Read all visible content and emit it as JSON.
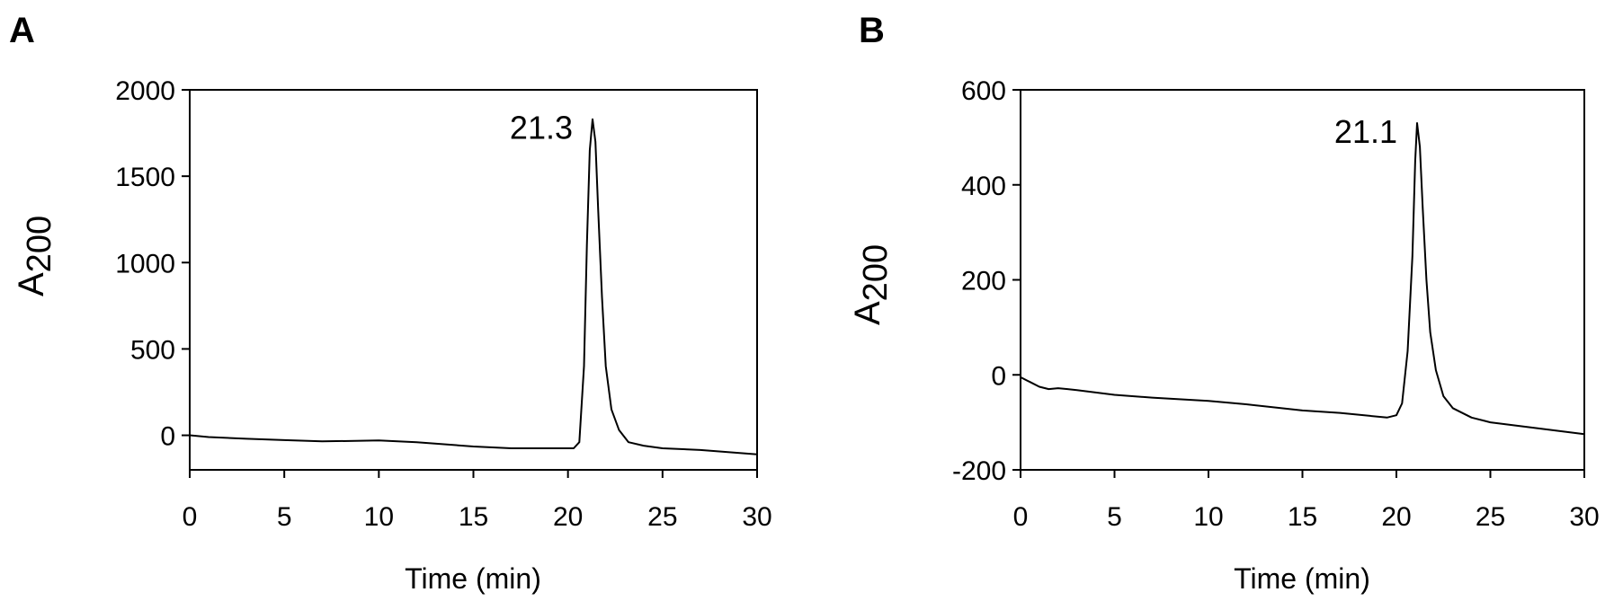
{
  "chart_data": [
    {
      "panel": "A",
      "type": "line",
      "xlabel": "Time (min)",
      "ylabel_main": "A",
      "ylabel_sub": "200",
      "xlim": [
        0,
        30
      ],
      "ylim": [
        -200,
        2000
      ],
      "xticks": [
        "0",
        "5",
        "10",
        "15",
        "20",
        "25",
        "30"
      ],
      "yticks": [
        "0",
        "500",
        "1000",
        "1500",
        "2000"
      ],
      "annotation": {
        "text": "21.3",
        "x": 21.3,
        "y": 1830
      },
      "series": [
        {
          "x": [
            0,
            1,
            3,
            5,
            7,
            10,
            12,
            15,
            17,
            19,
            20.3,
            20.6,
            20.85,
            21.0,
            21.15,
            21.3,
            21.45,
            21.6,
            21.8,
            22.0,
            22.3,
            22.7,
            23.2,
            24,
            25,
            27,
            30
          ],
          "y": [
            0,
            -10,
            -20,
            -28,
            -35,
            -30,
            -40,
            -65,
            -75,
            -75,
            -75,
            -40,
            400,
            1100,
            1650,
            1830,
            1700,
            1300,
            800,
            400,
            150,
            30,
            -40,
            -60,
            -75,
            -85,
            -110
          ]
        }
      ]
    },
    {
      "panel": "B",
      "type": "line",
      "xlabel": "Time (min)",
      "ylabel_main": "A",
      "ylabel_sub": "200",
      "xlim": [
        0,
        30
      ],
      "ylim": [
        -200,
        600
      ],
      "xticks": [
        "0",
        "5",
        "10",
        "15",
        "20",
        "25",
        "30"
      ],
      "yticks": [
        "-200",
        "0",
        "200",
        "400",
        "600"
      ],
      "annotation": {
        "text": "21.1",
        "x": 21.1,
        "y": 530
      },
      "series": [
        {
          "x": [
            0,
            0.5,
            1,
            1.5,
            2,
            2.5,
            3,
            5,
            7,
            10,
            12,
            15,
            17,
            19.5,
            20.0,
            20.3,
            20.6,
            20.85,
            21.0,
            21.1,
            21.25,
            21.4,
            21.6,
            21.8,
            22.1,
            22.5,
            23,
            24,
            25,
            27,
            30
          ],
          "y": [
            -5,
            -15,
            -25,
            -30,
            -28,
            -30,
            -32,
            -42,
            -48,
            -55,
            -62,
            -75,
            -80,
            -90,
            -85,
            -60,
            50,
            250,
            450,
            530,
            480,
            350,
            200,
            90,
            10,
            -45,
            -70,
            -90,
            -100,
            -110,
            -125
          ]
        }
      ]
    }
  ]
}
